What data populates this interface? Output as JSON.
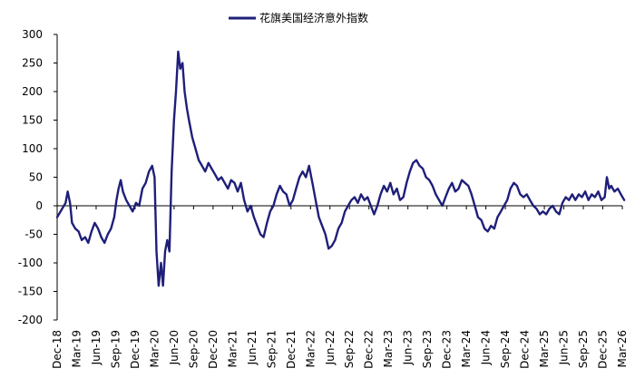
{
  "chart_data": {
    "type": "line",
    "title": "",
    "xlabel": "",
    "ylabel": "",
    "legend": {
      "position": "top-center",
      "entries": [
        "花旗美国经济意外指数"
      ]
    },
    "grid": false,
    "ylim": [
      -200,
      300
    ],
    "yticks": [
      300,
      250,
      200,
      150,
      100,
      50,
      0,
      -50,
      -100,
      -150,
      -200
    ],
    "xlim": [
      "2018-12",
      "2026-03"
    ],
    "xticks": [
      "Dec-18",
      "Mar-19",
      "Jun-19",
      "Sep-19",
      "Dec-19",
      "Mar-20",
      "Jun-20",
      "Sep-20",
      "Dec-20",
      "Mar-21",
      "Jun-21",
      "Sep-21",
      "Dec-21",
      "Mar-22",
      "Jun-22",
      "Sep-22",
      "Dec-22",
      "Mar-23",
      "Jun-23",
      "Sep-23",
      "Dec-23",
      "Mar-24",
      "Jun-24",
      "Sep-24",
      "Dec-24",
      "Mar-25",
      "Jun-25",
      "Sep-25",
      "Dec-25",
      "Mar-26"
    ],
    "colors": {
      "series": "#1f1f7a",
      "axis": "#000000"
    },
    "series": [
      {
        "name": "花旗美国经济意外指数",
        "points": [
          [
            "2018-12-01",
            -20
          ],
          [
            "2018-12-20",
            -8
          ],
          [
            "2019-01-10",
            5
          ],
          [
            "2019-01-20",
            25
          ],
          [
            "2019-01-31",
            5
          ],
          [
            "2019-02-10",
            -30
          ],
          [
            "2019-02-25",
            -40
          ],
          [
            "2019-03-10",
            -45
          ],
          [
            "2019-03-25",
            -60
          ],
          [
            "2019-04-10",
            -55
          ],
          [
            "2019-04-25",
            -65
          ],
          [
            "2019-05-10",
            -45
          ],
          [
            "2019-05-25",
            -30
          ],
          [
            "2019-06-10",
            -40
          ],
          [
            "2019-06-25",
            -55
          ],
          [
            "2019-07-10",
            -65
          ],
          [
            "2019-07-25",
            -50
          ],
          [
            "2019-08-10",
            -40
          ],
          [
            "2019-08-25",
            -20
          ],
          [
            "2019-09-05",
            10
          ],
          [
            "2019-09-15",
            30
          ],
          [
            "2019-09-25",
            45
          ],
          [
            "2019-10-05",
            25
          ],
          [
            "2019-10-20",
            10
          ],
          [
            "2019-11-05",
            0
          ],
          [
            "2019-11-20",
            -10
          ],
          [
            "2019-12-05",
            5
          ],
          [
            "2019-12-20",
            0
          ],
          [
            "2020-01-05",
            30
          ],
          [
            "2020-01-20",
            40
          ],
          [
            "2020-02-05",
            60
          ],
          [
            "2020-02-20",
            70
          ],
          [
            "2020-03-01",
            50
          ],
          [
            "2020-03-10",
            -80
          ],
          [
            "2020-03-20",
            -140
          ],
          [
            "2020-03-31",
            -100
          ],
          [
            "2020-04-10",
            -140
          ],
          [
            "2020-04-20",
            -80
          ],
          [
            "2020-04-30",
            -60
          ],
          [
            "2020-05-10",
            -80
          ],
          [
            "2020-05-20",
            60
          ],
          [
            "2020-05-31",
            150
          ],
          [
            "2020-06-10",
            200
          ],
          [
            "2020-06-20",
            270
          ],
          [
            "2020-06-30",
            240
          ],
          [
            "2020-07-10",
            250
          ],
          [
            "2020-07-20",
            200
          ],
          [
            "2020-07-31",
            170
          ],
          [
            "2020-08-10",
            150
          ],
          [
            "2020-08-25",
            120
          ],
          [
            "2020-09-10",
            100
          ],
          [
            "2020-09-25",
            80
          ],
          [
            "2020-10-10",
            70
          ],
          [
            "2020-10-25",
            60
          ],
          [
            "2020-11-10",
            75
          ],
          [
            "2020-11-25",
            65
          ],
          [
            "2020-12-10",
            55
          ],
          [
            "2020-12-25",
            45
          ],
          [
            "2021-01-10",
            50
          ],
          [
            "2021-01-25",
            40
          ],
          [
            "2021-02-10",
            30
          ],
          [
            "2021-02-25",
            45
          ],
          [
            "2021-03-10",
            40
          ],
          [
            "2021-03-25",
            25
          ],
          [
            "2021-04-10",
            40
          ],
          [
            "2021-04-25",
            10
          ],
          [
            "2021-05-10",
            -10
          ],
          [
            "2021-05-25",
            0
          ],
          [
            "2021-06-10",
            -20
          ],
          [
            "2021-06-25",
            -35
          ],
          [
            "2021-07-10",
            -50
          ],
          [
            "2021-07-25",
            -55
          ],
          [
            "2021-08-10",
            -30
          ],
          [
            "2021-08-25",
            -10
          ],
          [
            "2021-09-10",
            0
          ],
          [
            "2021-09-25",
            20
          ],
          [
            "2021-10-10",
            35
          ],
          [
            "2021-10-25",
            25
          ],
          [
            "2021-11-10",
            20
          ],
          [
            "2021-11-25",
            0
          ],
          [
            "2021-12-10",
            10
          ],
          [
            "2021-12-25",
            30
          ],
          [
            "2022-01-10",
            50
          ],
          [
            "2022-01-25",
            60
          ],
          [
            "2022-02-10",
            50
          ],
          [
            "2022-02-25",
            70
          ],
          [
            "2022-03-10",
            40
          ],
          [
            "2022-03-25",
            10
          ],
          [
            "2022-04-10",
            -20
          ],
          [
            "2022-04-25",
            -35
          ],
          [
            "2022-05-10",
            -50
          ],
          [
            "2022-05-25",
            -75
          ],
          [
            "2022-06-10",
            -70
          ],
          [
            "2022-06-25",
            -60
          ],
          [
            "2022-07-10",
            -40
          ],
          [
            "2022-07-25",
            -30
          ],
          [
            "2022-08-10",
            -10
          ],
          [
            "2022-08-25",
            0
          ],
          [
            "2022-09-10",
            10
          ],
          [
            "2022-09-25",
            15
          ],
          [
            "2022-10-10",
            5
          ],
          [
            "2022-10-25",
            20
          ],
          [
            "2022-11-10",
            10
          ],
          [
            "2022-11-25",
            15
          ],
          [
            "2022-12-10",
            0
          ],
          [
            "2022-12-25",
            -15
          ],
          [
            "2023-01-10",
            0
          ],
          [
            "2023-01-25",
            20
          ],
          [
            "2023-02-10",
            35
          ],
          [
            "2023-02-25",
            25
          ],
          [
            "2023-03-10",
            40
          ],
          [
            "2023-03-25",
            20
          ],
          [
            "2023-04-10",
            30
          ],
          [
            "2023-04-25",
            10
          ],
          [
            "2023-05-10",
            15
          ],
          [
            "2023-05-25",
            40
          ],
          [
            "2023-06-10",
            60
          ],
          [
            "2023-06-25",
            75
          ],
          [
            "2023-07-10",
            80
          ],
          [
            "2023-07-25",
            70
          ],
          [
            "2023-08-10",
            65
          ],
          [
            "2023-08-25",
            50
          ],
          [
            "2023-09-10",
            45
          ],
          [
            "2023-09-25",
            35
          ],
          [
            "2023-10-10",
            20
          ],
          [
            "2023-10-25",
            10
          ],
          [
            "2023-11-10",
            0
          ],
          [
            "2023-11-25",
            15
          ],
          [
            "2023-12-10",
            30
          ],
          [
            "2023-12-25",
            40
          ],
          [
            "2024-01-10",
            25
          ],
          [
            "2024-01-25",
            30
          ],
          [
            "2024-02-10",
            45
          ],
          [
            "2024-02-25",
            40
          ],
          [
            "2024-03-10",
            35
          ],
          [
            "2024-03-25",
            20
          ],
          [
            "2024-04-10",
            0
          ],
          [
            "2024-04-25",
            -20
          ],
          [
            "2024-05-10",
            -25
          ],
          [
            "2024-05-25",
            -40
          ],
          [
            "2024-06-10",
            -45
          ],
          [
            "2024-06-25",
            -35
          ],
          [
            "2024-07-10",
            -40
          ],
          [
            "2024-07-25",
            -20
          ],
          [
            "2024-08-10",
            -10
          ],
          [
            "2024-08-25",
            0
          ],
          [
            "2024-09-10",
            10
          ],
          [
            "2024-09-25",
            30
          ],
          [
            "2024-10-10",
            40
          ],
          [
            "2024-10-25",
            35
          ],
          [
            "2024-11-10",
            20
          ],
          [
            "2024-11-25",
            15
          ],
          [
            "2024-12-10",
            20
          ],
          [
            "2024-12-25",
            10
          ],
          [
            "2025-01-10",
            0
          ],
          [
            "2025-01-25",
            -5
          ],
          [
            "2025-02-10",
            -15
          ],
          [
            "2025-02-25",
            -10
          ],
          [
            "2025-03-10",
            -15
          ],
          [
            "2025-03-25",
            -5
          ],
          [
            "2025-04-10",
            0
          ],
          [
            "2025-04-25",
            -10
          ],
          [
            "2025-05-10",
            -15
          ],
          [
            "2025-05-25",
            5
          ],
          [
            "2025-06-10",
            15
          ],
          [
            "2025-06-25",
            10
          ],
          [
            "2025-07-10",
            20
          ],
          [
            "2025-07-25",
            10
          ],
          [
            "2025-08-10",
            20
          ],
          [
            "2025-08-25",
            15
          ],
          [
            "2025-09-10",
            25
          ],
          [
            "2025-09-25",
            10
          ],
          [
            "2025-10-10",
            20
          ],
          [
            "2025-10-25",
            15
          ],
          [
            "2025-11-10",
            25
          ],
          [
            "2025-11-25",
            10
          ],
          [
            "2025-12-10",
            15
          ],
          [
            "2025-12-20",
            50
          ],
          [
            "2025-12-31",
            30
          ],
          [
            "2026-01-10",
            35
          ],
          [
            "2026-01-25",
            25
          ],
          [
            "2026-02-10",
            30
          ],
          [
            "2026-02-25",
            20
          ],
          [
            "2026-03-10",
            10
          ]
        ]
      }
    ]
  }
}
